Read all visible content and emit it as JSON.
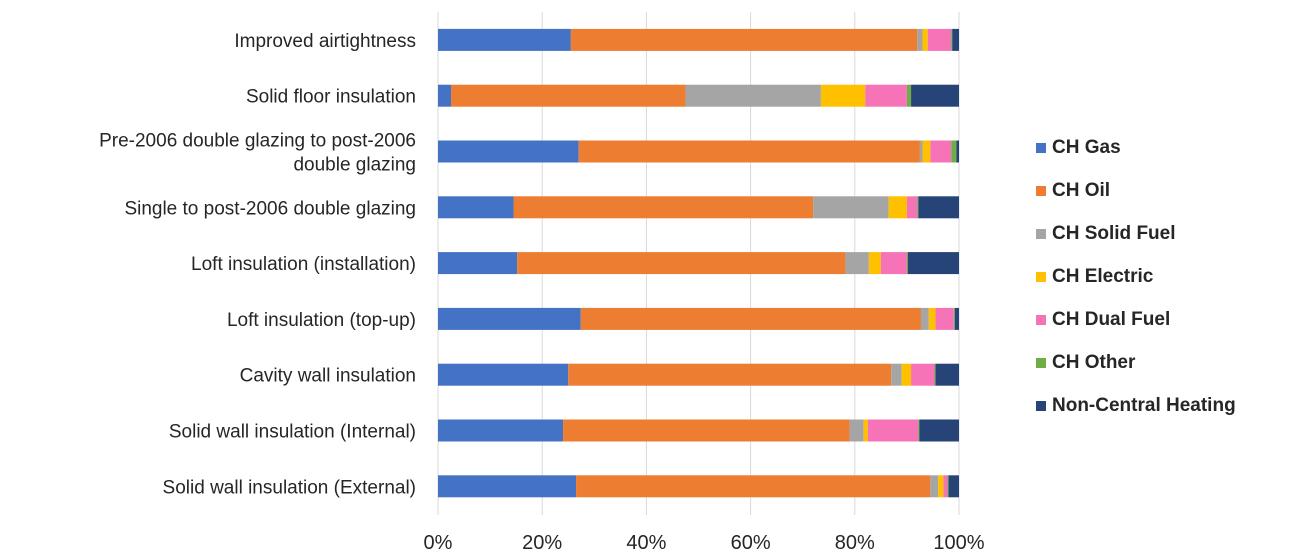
{
  "chart_data": {
    "type": "bar",
    "orientation": "horizontal",
    "stacked": "percent",
    "categories": [
      "Improved airtightness",
      "Solid floor insulation",
      "Pre-2006 double glazing to post-2006 double glazing",
      "Single to post-2006 double glazing",
      "Loft insulation (installation)",
      "Loft insulation (top-up)",
      "Cavity wall insulation",
      "Solid wall insulation (Internal)",
      "Solid wall insulation (External)"
    ],
    "category_lines": [
      [
        "Improved airtightness"
      ],
      [
        "Solid floor insulation"
      ],
      [
        "Pre-2006 double glazing to post-2006",
        "double glazing"
      ],
      [
        "Single to post-2006 double glazing"
      ],
      [
        "Loft insulation (installation)"
      ],
      [
        "Loft insulation (top-up)"
      ],
      [
        "Cavity wall insulation"
      ],
      [
        "Solid wall insulation (Internal)"
      ],
      [
        "Solid wall insulation (External)"
      ]
    ],
    "series": [
      {
        "name": "CH Gas",
        "color": "#4472C4",
        "values": [
          25.5,
          2.5,
          27,
          14.5,
          15.2,
          27.4,
          25,
          24,
          26.5
        ]
      },
      {
        "name": "CH Oil",
        "color": "#ED7D31",
        "values": [
          66.5,
          45,
          65.5,
          57.5,
          63,
          65.3,
          62,
          55,
          68
        ]
      },
      {
        "name": "CH Solid Fuel",
        "color": "#A5A5A5",
        "values": [
          1,
          26,
          0.5,
          14.5,
          4.5,
          1.5,
          2,
          2.7,
          1.5
        ]
      },
      {
        "name": "CH Electric",
        "color": "#FFC000",
        "values": [
          1,
          8.5,
          1.5,
          3.5,
          2.3,
          1.3,
          1.8,
          0.8,
          1
        ]
      },
      {
        "name": "CH Dual Fuel",
        "color": "#F573B6",
        "values": [
          4.5,
          8,
          4,
          2,
          5,
          3.5,
          4.5,
          9.7,
          0.8
        ]
      },
      {
        "name": "CH Other",
        "color": "#70AD47",
        "values": [
          0.2,
          0.8,
          1,
          0.2,
          0.2,
          0.2,
          0.2,
          0.2,
          0.2
        ]
      },
      {
        "name": "Non-Central Heating",
        "color": "#264478",
        "values": [
          1.3,
          9.2,
          0.5,
          7.8,
          9.8,
          0.8,
          4.5,
          7.6,
          2
        ]
      }
    ],
    "xlim": [
      0,
      100
    ],
    "xticks": [
      "0%",
      "20%",
      "40%",
      "60%",
      "80%",
      "100%"
    ],
    "grid": "vertical",
    "legend_position": "right",
    "title": "",
    "xlabel": "",
    "ylabel": ""
  }
}
